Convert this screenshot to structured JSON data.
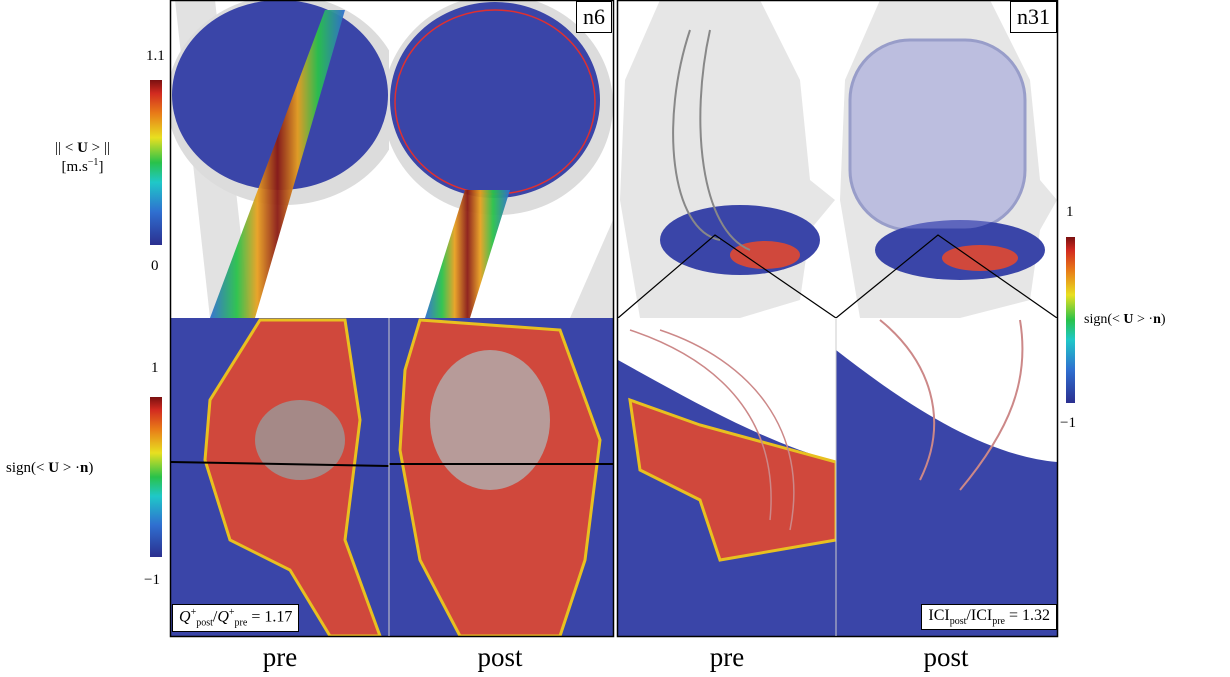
{
  "colorbar_velocity": {
    "max": "1.1",
    "min": "0",
    "label": [
      "|| <",
      "U",
      "> ||"
    ],
    "unit": [
      "[m.s",
      "−1",
      "]"
    ]
  },
  "colorbar_sign_left": {
    "max": "1",
    "min": "−1",
    "label": [
      "sign(<",
      "U",
      "> ·",
      "n",
      ")"
    ]
  },
  "colorbar_sign_right": {
    "max": "1",
    "min": "−1",
    "label": [
      "sign(<",
      "U",
      "> ·",
      "n",
      ")"
    ]
  },
  "panels": [
    {
      "case": "n6",
      "ratio": {
        "symbol": "Q",
        "sup": "+",
        "num_sub": "post",
        "den_sub": "pre",
        "value": "= 1.17"
      },
      "columns": [
        "pre",
        "post"
      ]
    },
    {
      "case": "n31",
      "ratio": {
        "symbol": "ICI",
        "sup": "",
        "num_sub": "post",
        "den_sub": "pre",
        "value": "= 1.32"
      },
      "columns": [
        "pre",
        "post"
      ]
    }
  ]
}
